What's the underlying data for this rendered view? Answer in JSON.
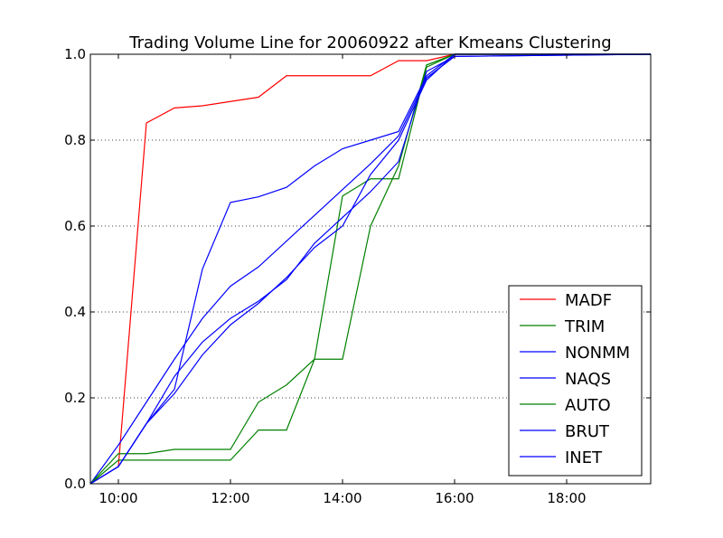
{
  "chart_data": {
    "type": "line",
    "title": "Trading Volume Line for 20060922 after Kmeans Clustering",
    "xlabel": "",
    "ylabel": "",
    "xlim": [
      "09:30",
      "19:30"
    ],
    "ylim": [
      0,
      1.0
    ],
    "x_ticks": [
      "10:00",
      "12:00",
      "14:00",
      "16:00",
      "18:00"
    ],
    "y_ticks": [
      "0.0",
      "0.2",
      "0.4",
      "0.6",
      "0.8",
      "1.0"
    ],
    "grid": "y-dotted",
    "legend_position": "lower-right",
    "x": [
      "09:30",
      "10:00",
      "10:30",
      "11:00",
      "11:30",
      "12:00",
      "12:30",
      "13:00",
      "13:30",
      "14:00",
      "14:30",
      "15:00",
      "15:30",
      "16:00",
      "19:30"
    ],
    "series": [
      {
        "name": "MADF",
        "color": "#ff0000",
        "values": [
          0.0,
          0.04,
          0.84,
          0.875,
          0.88,
          0.89,
          0.9,
          0.95,
          0.95,
          0.95,
          0.95,
          0.985,
          0.985,
          1.0,
          1.0
        ]
      },
      {
        "name": "TRIM",
        "color": "#008000",
        "values": [
          0.0,
          0.055,
          0.055,
          0.055,
          0.055,
          0.055,
          0.125,
          0.125,
          0.29,
          0.29,
          0.6,
          0.74,
          0.975,
          1.0,
          1.0
        ]
      },
      {
        "name": "NONMM",
        "color": "#0000ff",
        "values": [
          0.0,
          0.04,
          0.14,
          0.22,
          0.5,
          0.655,
          0.668,
          0.69,
          0.74,
          0.78,
          0.8,
          0.82,
          0.95,
          1.0,
          1.0
        ]
      },
      {
        "name": "NAQS",
        "color": "#0000ff",
        "values": [
          0.0,
          0.09,
          0.19,
          0.29,
          0.385,
          0.46,
          0.505,
          0.565,
          0.625,
          0.685,
          0.745,
          0.81,
          0.945,
          0.995,
          1.0
        ]
      },
      {
        "name": "AUTO",
        "color": "#008000",
        "values": [
          0.0,
          0.07,
          0.07,
          0.08,
          0.08,
          0.08,
          0.19,
          0.23,
          0.29,
          0.67,
          0.71,
          0.71,
          0.97,
          1.0,
          1.0
        ]
      },
      {
        "name": "BRUT",
        "color": "#0000ff",
        "values": [
          0.0,
          0.04,
          0.14,
          0.21,
          0.3,
          0.37,
          0.42,
          0.48,
          0.55,
          0.6,
          0.72,
          0.8,
          0.94,
          1.0,
          1.0
        ]
      },
      {
        "name": "INET",
        "color": "#0000ff",
        "values": [
          0.0,
          0.04,
          0.14,
          0.25,
          0.33,
          0.385,
          0.425,
          0.475,
          0.56,
          0.62,
          0.68,
          0.75,
          0.96,
          0.995,
          1.0
        ]
      }
    ]
  }
}
